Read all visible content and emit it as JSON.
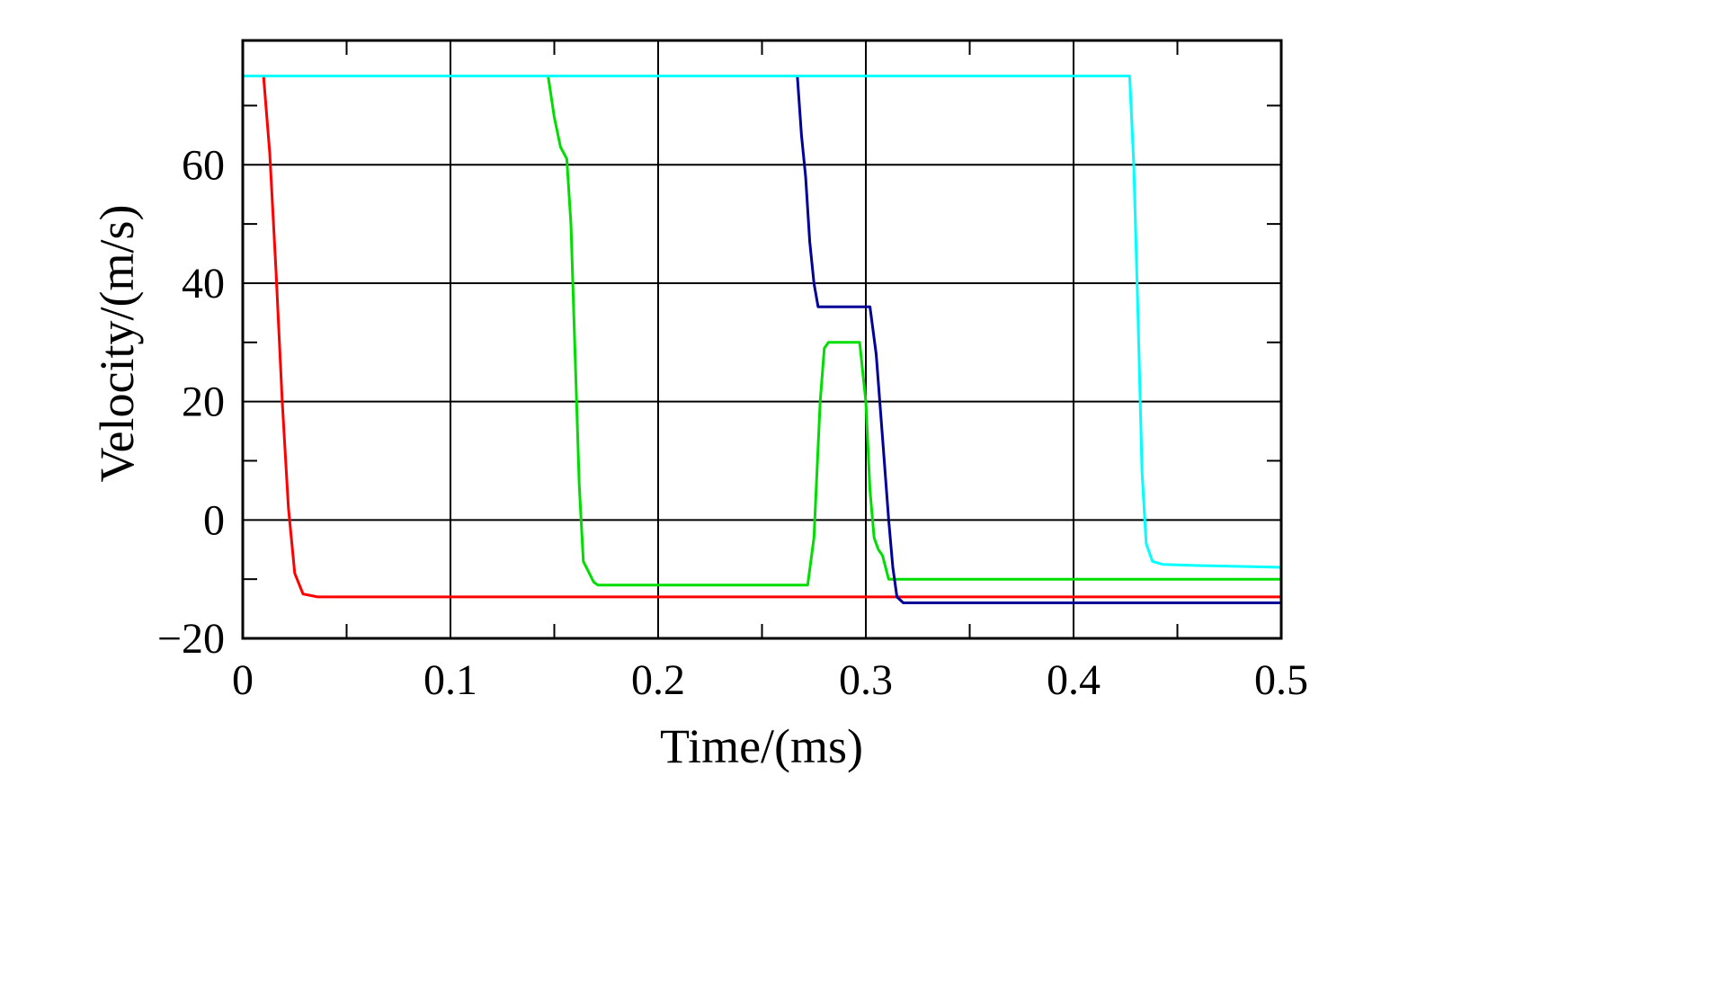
{
  "chart_data": {
    "type": "line",
    "title": "",
    "xlabel": "Time/(ms)",
    "ylabel": "Velocity/(m/s)",
    "xlim": [
      0,
      0.5
    ],
    "ylim": [
      -20,
      81
    ],
    "grid": true,
    "legend": "none",
    "frame_color": "#000000",
    "xticks": {
      "major": [
        0,
        0.1,
        0.2,
        0.3,
        0.4,
        0.5
      ],
      "labels": [
        "0",
        "0.1",
        "0.2",
        "0.3",
        "0.4",
        "0.5"
      ],
      "minor": [
        0.05,
        0.15,
        0.25,
        0.35,
        0.45
      ]
    },
    "yticks": {
      "major": [
        -20,
        0,
        20,
        40,
        60
      ],
      "labels": [
        "−20",
        "0",
        "20",
        "40",
        "60"
      ],
      "minor": [
        -10,
        10,
        30,
        50,
        70
      ]
    },
    "series": [
      {
        "name": "curve-red",
        "color": "#ff0000",
        "points": [
          [
            0,
            75
          ],
          [
            0.01,
            75
          ],
          [
            0.013,
            62
          ],
          [
            0.016,
            42
          ],
          [
            0.019,
            20
          ],
          [
            0.022,
            2
          ],
          [
            0.025,
            -9
          ],
          [
            0.029,
            -12.5
          ],
          [
            0.036,
            -13
          ],
          [
            0.5,
            -13
          ]
        ]
      },
      {
        "name": "curve-green",
        "color": "#00dd00",
        "points": [
          [
            0,
            75
          ],
          [
            0.147,
            75
          ],
          [
            0.15,
            68
          ],
          [
            0.153,
            63
          ],
          [
            0.156,
            61
          ],
          [
            0.158,
            50
          ],
          [
            0.16,
            28
          ],
          [
            0.162,
            6
          ],
          [
            0.164,
            -7
          ],
          [
            0.169,
            -10.5
          ],
          [
            0.171,
            -11
          ],
          [
            0.272,
            -11
          ],
          [
            0.275,
            -3
          ],
          [
            0.278,
            20
          ],
          [
            0.28,
            29
          ],
          [
            0.282,
            30
          ],
          [
            0.297,
            30
          ],
          [
            0.3,
            20
          ],
          [
            0.302,
            5
          ],
          [
            0.304,
            -3
          ],
          [
            0.306,
            -5
          ],
          [
            0.308,
            -6
          ],
          [
            0.311,
            -10
          ],
          [
            0.5,
            -10
          ]
        ]
      },
      {
        "name": "curve-navy",
        "color": "#000099",
        "points": [
          [
            0,
            75
          ],
          [
            0.267,
            75
          ],
          [
            0.269,
            65
          ],
          [
            0.271,
            58
          ],
          [
            0.273,
            47
          ],
          [
            0.275,
            40
          ],
          [
            0.277,
            36
          ],
          [
            0.302,
            36
          ],
          [
            0.305,
            28
          ],
          [
            0.308,
            14
          ],
          [
            0.311,
            0
          ],
          [
            0.313,
            -8
          ],
          [
            0.315,
            -13
          ],
          [
            0.318,
            -14
          ],
          [
            0.5,
            -14
          ]
        ]
      },
      {
        "name": "curve-cyan",
        "color": "#00ffff",
        "points": [
          [
            0,
            75
          ],
          [
            0.427,
            75
          ],
          [
            0.429,
            60
          ],
          [
            0.431,
            35
          ],
          [
            0.433,
            8
          ],
          [
            0.435,
            -4
          ],
          [
            0.438,
            -7
          ],
          [
            0.443,
            -7.5
          ],
          [
            0.46,
            -7.7
          ],
          [
            0.5,
            -8
          ]
        ]
      }
    ]
  }
}
